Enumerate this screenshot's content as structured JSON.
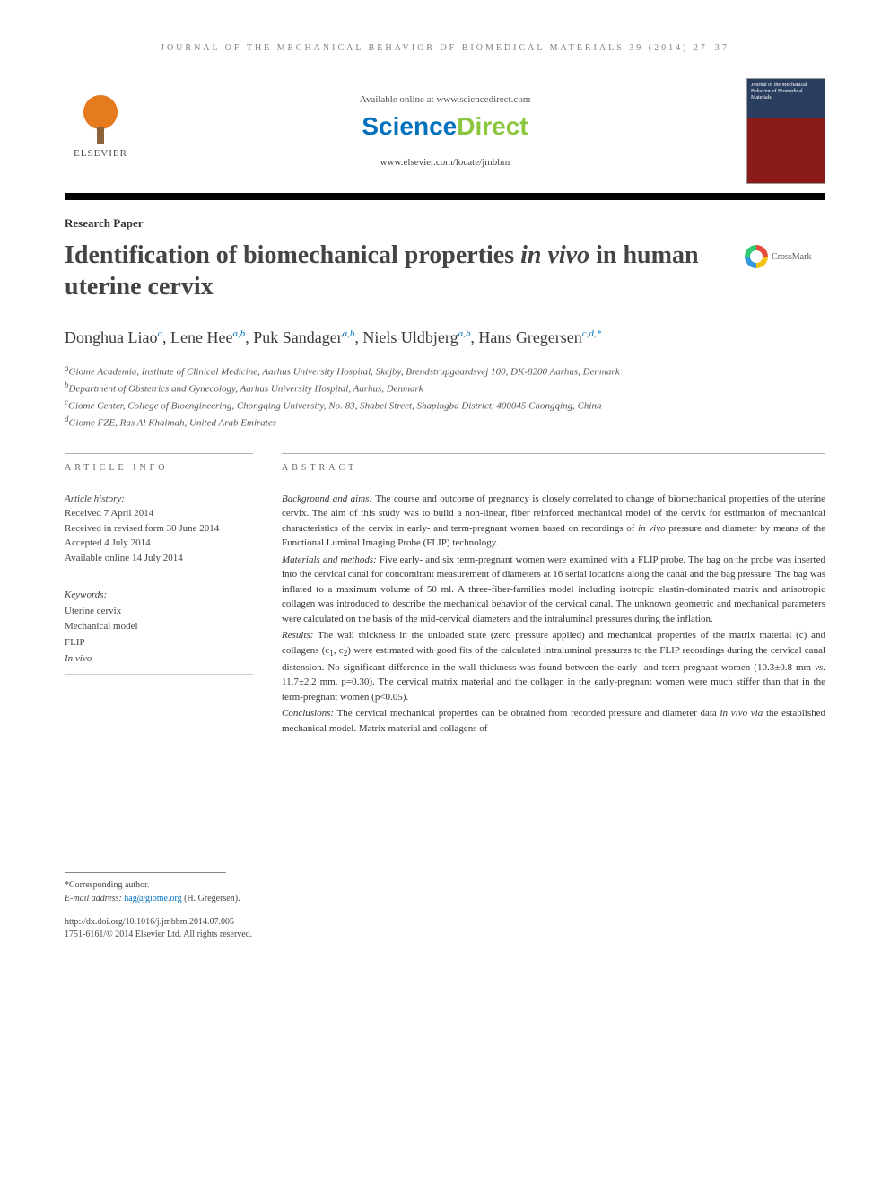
{
  "running_head": "JOURNAL OF THE MECHANICAL BEHAVIOR OF BIOMEDICAL MATERIALS 39 (2014) 27–37",
  "masthead": {
    "elsevier_label": "ELSEVIER",
    "available_text": "Available online at www.sciencedirect.com",
    "sd_science": "Science",
    "sd_direct": "Direct",
    "locate_url": "www.elsevier.com/locate/jmbbm",
    "journal_cover_title": "Journal of the Mechanical Behavior of Biomedical Materials"
  },
  "paper_type": "Research Paper",
  "title_plain_prefix": "Identification of biomechanical properties ",
  "title_italic": "in vivo",
  "title_plain_suffix": " in human uterine cervix",
  "crossmark_label": "CrossMark",
  "authors": [
    {
      "name": "Donghua Liao",
      "aff": "a"
    },
    {
      "name": "Lene Hee",
      "aff": "a,b"
    },
    {
      "name": "Puk Sandager",
      "aff": "a,b"
    },
    {
      "name": "Niels Uldbjerg",
      "aff": "a,b"
    },
    {
      "name": "Hans Gregersen",
      "aff": "c,d,*"
    }
  ],
  "affiliations": {
    "a": "Giome Academia, Institute of Clinical Medicine, Aarhus University Hospital, Skejby, Brendstrupgaardsvej 100, DK-8200 Aarhus, Denmark",
    "b": "Department of Obstetrics and Gynecology, Aarhus University Hospital, Aarhus, Denmark",
    "c": "Giome Center, College of Bioengineering, Chongqing University, No. 83, Shabei Street, Shapingba District, 400045 Chongqing, China",
    "d": "Giome FZE, Ras Al Khaimah, United Arab Emirates"
  },
  "article_info_heading": "ARTICLE INFO",
  "abstract_heading": "ABSTRACT",
  "history": {
    "label": "Article history:",
    "received": "Received 7 April 2014",
    "revised": "Received in revised form 30 June 2014",
    "accepted": "Accepted 4 July 2014",
    "online": "Available online 14 July 2014"
  },
  "keywords": {
    "label": "Keywords:",
    "items": [
      "Uterine cervix",
      "Mechanical model",
      "FLIP"
    ],
    "italic_item": "In vivo"
  },
  "abstract": {
    "background_label": "Background and aims:",
    "background_text": " The course and outcome of pregnancy is closely correlated to change of biomechanical properties of the uterine cervix. The aim of this study was to build a non-linear, fiber reinforced mechanical model of the cervix for estimation of mechanical characteristics of the cervix in early- and term-pregnant women based on recordings of ",
    "background_italic": "in vivo",
    "background_tail": " pressure and diameter by means of the Functional Luminal Imaging Probe (FLIP) technology.",
    "methods_label": "Materials and methods:",
    "methods_text": " Five early- and six term-pregnant women were examined with a FLIP probe. The bag on the probe was inserted into the cervical canal for concomitant measurement of diameters at 16 serial locations along the canal and the bag pressure. The bag was inflated to a maximum volume of 50 ml. A three-fiber-families model including isotropic elastin-dominated matrix and anisotropic collagen was introduced to describe the mechanical behavior of the cervical canal. The unknown geometric and mechanical parameters were calculated on the basis of the mid-cervical diameters and the intraluminal pressures during the inflation.",
    "results_label": "Results:",
    "results_text_1": " The wall thickness in the unloaded state (zero pressure applied) and mechanical properties of the matrix material (c) and collagens (c",
    "results_sub1": "1",
    "results_text_2": ", c",
    "results_sub2": "2",
    "results_text_3": ") were estimated with good fits of the calculated intraluminal pressures to the FLIP recordings during the cervical canal distension. No significant difference in the wall thickness was found between the early- and term-pregnant women (10.3±0.8 mm ",
    "results_italic": "vs.",
    "results_text_4": " 11.7±2.2 mm, p=0.30). The cervical matrix material and the collagen in the early-pregnant women were much stiffer than that in the term-pregnant women (p<0.05).",
    "conclusions_label": "Conclusions:",
    "conclusions_text_1": " The cervical mechanical properties can be obtained from recorded pressure and diameter data ",
    "conclusions_italic1": "in vivo via",
    "conclusions_text_2": " the established mechanical model. Matrix material and collagens of"
  },
  "footnote": {
    "corr": "*Corresponding author.",
    "email_label": "E-mail address:",
    "email": "hag@giome.org",
    "email_name": " (H. Gregersen)."
  },
  "doi": {
    "url": "http://dx.doi.org/10.1016/j.jmbbm.2014.07.005",
    "copyright": "1751-6161/© 2014 Elsevier Ltd. All rights reserved."
  },
  "colors": {
    "link": "#0071bc",
    "sd_green": "#8cc63f",
    "elsevier_orange": "#e67a1f",
    "text": "#333333"
  }
}
